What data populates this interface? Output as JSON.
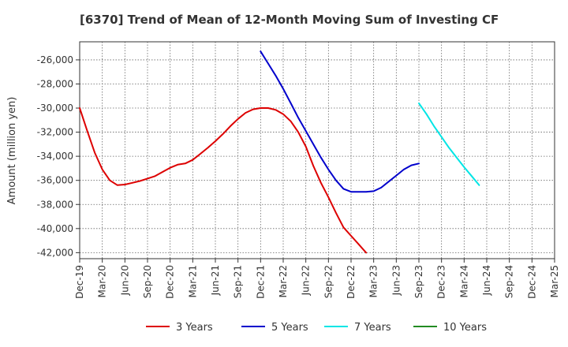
{
  "chart_data": {
    "type": "line",
    "title": "[6370]  Trend of Mean of 12-Month Moving Sum of Investing CF",
    "xlabel": "",
    "ylabel": "Amount (million yen)",
    "ylim": [
      -42500,
      -24500
    ],
    "yticks": [
      -26000,
      -28000,
      -30000,
      -32000,
      -34000,
      -36000,
      -38000,
      -40000,
      -42000
    ],
    "ytick_labels": [
      "-26,000",
      "-28,000",
      "-30,000",
      "-32,000",
      "-34,000",
      "-36,000",
      "-38,000",
      "-40,000",
      "-42,000"
    ],
    "x_start": "Dec-19",
    "x_months": 63,
    "x_tick_step_months": 3,
    "x_tick_labels": [
      "Dec-19",
      "Mar-20",
      "Jun-20",
      "Sep-20",
      "Dec-20",
      "Mar-21",
      "Jun-21",
      "Sep-21",
      "Dec-21",
      "Mar-22",
      "Jun-22",
      "Sep-22",
      "Dec-22",
      "Mar-23",
      "Jun-23",
      "Sep-23",
      "Dec-23",
      "Mar-24",
      "Jun-24",
      "Sep-24",
      "Dec-24",
      "Mar-25"
    ],
    "grid": true,
    "legend_position": "bottom",
    "series": [
      {
        "name": "3 Years",
        "color": "#dd0000",
        "start_index": 0,
        "values": [
          -30000,
          -31900,
          -33700,
          -35100,
          -36000,
          -36400,
          -36350,
          -36200,
          -36050,
          -35850,
          -35650,
          -35300,
          -34950,
          -34700,
          -34600,
          -34300,
          -33800,
          -33300,
          -32750,
          -32150,
          -31500,
          -30900,
          -30400,
          -30100,
          -30000,
          -30000,
          -30150,
          -30500,
          -31100,
          -32000,
          -33200,
          -34800,
          -36200,
          -37400,
          -38700,
          -39900,
          -40600,
          -41300,
          -42000
        ]
      },
      {
        "name": "5 Years",
        "color": "#0000cc",
        "start_index": 24,
        "values": [
          -25300,
          -26300,
          -27300,
          -28400,
          -29600,
          -30800,
          -31900,
          -33000,
          -34100,
          -35100,
          -36000,
          -36700,
          -36950,
          -36950,
          -36950,
          -36900,
          -36600,
          -36100,
          -35600,
          -35100,
          -34750,
          -34600
        ]
      },
      {
        "name": "7 Years",
        "color": "#00e5e5",
        "start_index": 45,
        "values": [
          -29600,
          -30500,
          -31500,
          -32400,
          -33300,
          -34100,
          -34900,
          -35650,
          -36400
        ]
      },
      {
        "name": "10 Years",
        "color": "#228b22",
        "start_index": 0,
        "values": []
      }
    ]
  }
}
